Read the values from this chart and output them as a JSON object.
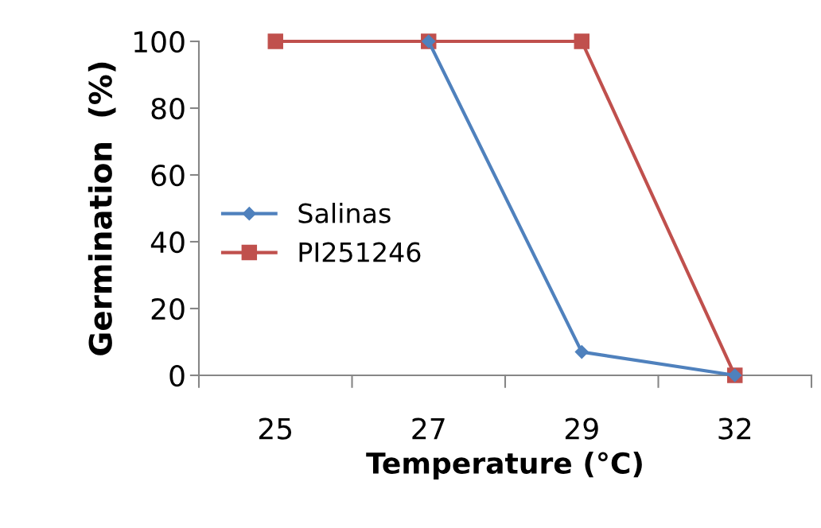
{
  "chart_data": {
    "type": "line",
    "xlabel": "Temperature (°C)",
    "ylabel": "Germination  (%)",
    "categories": [
      "25",
      "27",
      "29",
      "32"
    ],
    "series": [
      {
        "name": "Salinas",
        "color": "#4f81bd",
        "marker": "diamond",
        "values": [
          null,
          100,
          7,
          0
        ]
      },
      {
        "name": "PI251246",
        "color": "#c0504d",
        "marker": "square",
        "values": [
          100,
          100,
          100,
          0
        ]
      }
    ],
    "ylim": [
      0,
      100
    ],
    "yticks": [
      0,
      20,
      40,
      60,
      80,
      100
    ],
    "grid": false,
    "legend": "left",
    "line_style": "solid"
  }
}
